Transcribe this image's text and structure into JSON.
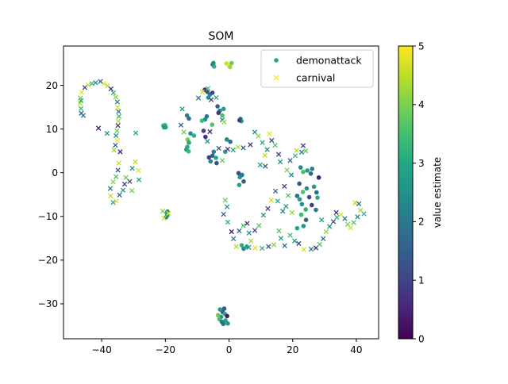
{
  "chart_data": {
    "type": "scatter",
    "title": "SOM",
    "xlabel": "",
    "ylabel": "",
    "xlim": [
      -52,
      47
    ],
    "ylim": [
      -38,
      29
    ],
    "xticks": [
      -40,
      -20,
      0,
      20,
      40
    ],
    "yticks": [
      -30,
      -20,
      -10,
      0,
      10,
      20
    ],
    "xtick_labels": [
      "−40",
      "−20",
      "0",
      "20",
      "40"
    ],
    "ytick_labels": [
      "−30",
      "−20",
      "−10",
      "0",
      "10",
      "20"
    ],
    "grid": false,
    "legend": {
      "placement": "top-right",
      "entries": [
        "demonattack",
        "carnival"
      ]
    },
    "colorbar": {
      "label": "value estimate",
      "range": [
        0,
        5
      ],
      "ticks": [
        0,
        1,
        2,
        3,
        4,
        5
      ],
      "tick_labels": [
        "0",
        "1",
        "2",
        "3",
        "4",
        "5"
      ],
      "colormap": "viridis"
    },
    "series": [
      {
        "name": "demonattack",
        "marker": "circle",
        "points": [
          [
            -5.1,
            24.8,
            1.2
          ],
          [
            -4.7,
            24.3,
            3.2
          ],
          [
            -4.9,
            25.1,
            2.5
          ],
          [
            -0.8,
            25.0,
            4.6
          ],
          [
            0.2,
            24.6,
            4.9
          ],
          [
            0.8,
            25.1,
            3.9
          ],
          [
            0.3,
            24.2,
            4.2
          ],
          [
            -7.6,
            19.0,
            0.6
          ],
          [
            -6.8,
            18.5,
            1.3
          ],
          [
            -6.0,
            17.9,
            2.1
          ],
          [
            -5.2,
            18.3,
            1.0
          ],
          [
            -6.5,
            17.2,
            2.6
          ],
          [
            -3.6,
            15.2,
            1.5
          ],
          [
            -2.9,
            14.2,
            2.4
          ],
          [
            -2.1,
            13.1,
            3.5
          ],
          [
            -3.3,
            13.7,
            0.8
          ],
          [
            -1.7,
            14.6,
            2.8
          ],
          [
            3.6,
            12.3,
            1.6
          ],
          [
            3.9,
            11.8,
            2.9
          ],
          [
            3.3,
            12.0,
            0.9
          ],
          [
            -20.6,
            10.8,
            3.1
          ],
          [
            -20.1,
            10.9,
            3.4
          ],
          [
            -19.9,
            10.4,
            3.0
          ],
          [
            -20.4,
            10.4,
            2.7
          ],
          [
            -7.5,
            12.2,
            2.5
          ],
          [
            -7.0,
            12.9,
            2.0
          ],
          [
            -13.2,
            13.1,
            2.2
          ],
          [
            -12.6,
            12.4,
            1.8
          ],
          [
            -8.5,
            11.9,
            3.4
          ],
          [
            -5.3,
            11.0,
            3.6
          ],
          [
            -11.0,
            8.5,
            3.2
          ],
          [
            -12.1,
            9.0,
            2.5
          ],
          [
            -13.0,
            7.6,
            3.9
          ],
          [
            -12.6,
            6.9,
            2.9
          ],
          [
            -13.4,
            5.3,
            2.7
          ],
          [
            -12.7,
            4.9,
            3.4
          ],
          [
            -13.1,
            5.9,
            3.1
          ],
          [
            -8.0,
            9.6,
            1.1
          ],
          [
            -7.4,
            8.2,
            0.7
          ],
          [
            -4.8,
            4.8,
            2.2
          ],
          [
            -5.2,
            3.9,
            1.6
          ],
          [
            -4.1,
            3.4,
            3.0
          ],
          [
            -5.8,
            2.6,
            2.5
          ],
          [
            -3.9,
            2.2,
            1.4
          ],
          [
            -6.3,
            3.5,
            0.9
          ],
          [
            -0.7,
            7.6,
            2.3
          ],
          [
            0.4,
            7.1,
            1.8
          ],
          [
            -1.2,
            4.8,
            3.0
          ],
          [
            3.0,
            -0.1,
            1.2
          ],
          [
            3.4,
            -1.0,
            2.6
          ],
          [
            4.1,
            -0.5,
            2.1
          ],
          [
            3.2,
            -2.8,
            2.9
          ],
          [
            4.6,
            -2.0,
            1.5
          ],
          [
            -19.6,
            -9.2,
            3.2
          ],
          [
            -19.4,
            -9.8,
            2.8
          ],
          [
            -19.8,
            -10.2,
            2.1
          ],
          [
            -19.3,
            -8.9,
            2.4
          ],
          [
            4.0,
            -16.6,
            3.2
          ],
          [
            4.6,
            -17.4,
            2.4
          ],
          [
            5.6,
            -16.9,
            2.9
          ],
          [
            22.5,
            1.2,
            2.3
          ],
          [
            23.3,
            0.2,
            3.5
          ],
          [
            24.6,
            0.5,
            2.8
          ],
          [
            25.7,
            -0.2,
            1.6
          ],
          [
            26.1,
            0.9,
            2.1
          ],
          [
            22.1,
            -2.5,
            1.4
          ],
          [
            23.2,
            -4.4,
            3.6
          ],
          [
            24.4,
            -3.6,
            2.4
          ],
          [
            22.2,
            -6.1,
            2.9
          ],
          [
            21.4,
            -5.3,
            1.9
          ],
          [
            25.2,
            -5.6,
            1.1
          ],
          [
            22.9,
            -7.2,
            2.5
          ],
          [
            24.1,
            -8.4,
            3.2
          ],
          [
            26.0,
            -7.4,
            0.9
          ],
          [
            27.3,
            -8.5,
            2.1
          ],
          [
            22.7,
            -9.6,
            3.4
          ],
          [
            24.2,
            -10.8,
            1.6
          ],
          [
            23.4,
            -12.2,
            2.6
          ],
          [
            21.4,
            -12.7,
            3.0
          ],
          [
            26.7,
            -3.2,
            2.8
          ],
          [
            27.5,
            -4.5,
            1.8
          ],
          [
            28.2,
            -1.1,
            0.5
          ],
          [
            27.8,
            -5.7,
            3.1
          ],
          [
            -2.0,
            -31.9,
            1.5
          ],
          [
            -1.3,
            -32.3,
            3.1
          ],
          [
            -2.5,
            -33.0,
            2.4
          ],
          [
            -3.0,
            -33.5,
            3.4
          ],
          [
            -2.3,
            -34.1,
            2.0
          ],
          [
            -1.1,
            -33.8,
            2.9
          ],
          [
            -0.6,
            -32.8,
            0.4
          ],
          [
            -0.4,
            -34.5,
            2.6
          ],
          [
            -3.4,
            -32.6,
            3.8
          ],
          [
            -1.8,
            -34.6,
            1.9
          ],
          [
            -2.8,
            -31.3,
            2.7
          ],
          [
            -1.5,
            -31.1,
            1.4
          ]
        ]
      },
      {
        "name": "carnival",
        "marker": "x",
        "points": [
          [
            -46.4,
            13.6,
            1.6
          ],
          [
            -46.5,
            14.7,
            3.4
          ],
          [
            -46.8,
            15.9,
            4.4
          ],
          [
            -46.7,
            17.1,
            4.0
          ],
          [
            -46.3,
            18.4,
            4.8
          ],
          [
            -45.3,
            19.5,
            1.2
          ],
          [
            -44.2,
            20.1,
            4.6
          ],
          [
            -43.1,
            20.4,
            3.3
          ],
          [
            -41.9,
            20.6,
            2.4
          ],
          [
            -40.4,
            20.9,
            1.4
          ],
          [
            -39.3,
            20.4,
            4.9
          ],
          [
            -38.2,
            19.9,
            4.4
          ],
          [
            -37.1,
            19.2,
            0.6
          ],
          [
            -36.3,
            18.3,
            3.2
          ],
          [
            -35.6,
            17.3,
            4.1
          ],
          [
            -35.1,
            16.2,
            2.1
          ],
          [
            -35.0,
            15.0,
            4.7
          ],
          [
            -34.7,
            14.0,
            1.9
          ],
          [
            -34.6,
            12.9,
            3.4
          ],
          [
            -34.8,
            11.8,
            4.4
          ],
          [
            -34.9,
            10.8,
            0.9
          ],
          [
            -35.2,
            9.6,
            3.9
          ],
          [
            -35.5,
            8.5,
            2.6
          ],
          [
            -35.1,
            7.4,
            4.9
          ],
          [
            -35.7,
            6.3,
            1.5
          ],
          [
            -36.1,
            5.2,
            4.2
          ],
          [
            -34.2,
            4.8,
            0.4
          ],
          [
            -41.0,
            10.2,
            0.3
          ],
          [
            -38.3,
            9.0,
            2.5
          ],
          [
            -29.3,
            9.1,
            3.0
          ],
          [
            -34.6,
            2.2,
            4.6
          ],
          [
            -34.9,
            0.6,
            1.5
          ],
          [
            -35.5,
            -0.9,
            3.6
          ],
          [
            -36.4,
            -2.1,
            4.1
          ],
          [
            -37.3,
            -3.6,
            2.0
          ],
          [
            -37.2,
            -5.3,
            4.5
          ],
          [
            -36.4,
            -6.8,
            3.1
          ],
          [
            -35.4,
            -6.5,
            4.8
          ],
          [
            -34.4,
            -5.1,
            1.8
          ],
          [
            -33.3,
            -4.0,
            2.6
          ],
          [
            -32.8,
            -2.6,
            0.9
          ],
          [
            -32.4,
            -1.1,
            3.8
          ],
          [
            -31.2,
            -2.0,
            1.2
          ],
          [
            -30.5,
            -4.1,
            4.0
          ],
          [
            -30.4,
            1.0,
            2.7
          ],
          [
            -29.4,
            2.5,
            4.5
          ],
          [
            -28.5,
            0.5,
            4.8
          ],
          [
            -28.3,
            -1.6,
            3.0
          ],
          [
            -20.4,
            -10.4,
            4.6
          ],
          [
            -20.8,
            -8.8,
            4.0
          ],
          [
            -19.0,
            -9.3,
            4.9
          ],
          [
            -14.7,
            14.6,
            2.9
          ],
          [
            -15.1,
            10.9,
            1.7
          ],
          [
            -14.2,
            9.3,
            3.8
          ],
          [
            -9.6,
            17.1,
            2.0
          ],
          [
            -8.4,
            18.5,
            4.6
          ],
          [
            -6.6,
            19.3,
            3.5
          ],
          [
            -5.6,
            16.7,
            0.8
          ],
          [
            -4.0,
            17.2,
            3.1
          ],
          [
            -2.1,
            12.1,
            1.8
          ],
          [
            -1.5,
            11.6,
            4.2
          ],
          [
            -6.0,
            9.4,
            0.5
          ],
          [
            -6.8,
            7.2,
            2.7
          ],
          [
            -3.2,
            5.6,
            1.2
          ],
          [
            -2.1,
            2.8,
            3.9
          ],
          [
            -0.4,
            5.4,
            0.6
          ],
          [
            1.3,
            5.2,
            2.9
          ],
          [
            2.8,
            5.9,
            4.4
          ],
          [
            4.5,
            5.7,
            1.6
          ],
          [
            6.7,
            6.4,
            0.7
          ],
          [
            8.1,
            9.3,
            2.3
          ],
          [
            9.2,
            8.4,
            4.1
          ],
          [
            10.5,
            6.9,
            3.1
          ],
          [
            12.0,
            5.3,
            2.0
          ],
          [
            12.7,
            8.9,
            4.8
          ],
          [
            13.4,
            7.4,
            1.1
          ],
          [
            14.5,
            6.3,
            3.6
          ],
          [
            15.6,
            4.2,
            0.9
          ],
          [
            16.1,
            2.5,
            2.5
          ],
          [
            11.3,
            4.0,
            4.5
          ],
          [
            9.8,
            1.8,
            2.9
          ],
          [
            11.4,
            1.5,
            1.4
          ],
          [
            -1.2,
            -6.3,
            3.9
          ],
          [
            -0.6,
            -7.8,
            2.7
          ],
          [
            -1.7,
            -9.5,
            1.5
          ],
          [
            -0.4,
            -11.3,
            3.2
          ],
          [
            0.8,
            -13.5,
            0.4
          ],
          [
            1.4,
            -15.1,
            2.0
          ],
          [
            2.3,
            -16.9,
            4.4
          ],
          [
            3.2,
            -13.3,
            1.6
          ],
          [
            4.5,
            -12.1,
            3.5
          ],
          [
            5.7,
            -11.6,
            0.6
          ],
          [
            6.3,
            -13.8,
            2.5
          ],
          [
            6.9,
            -15.6,
            4.3
          ],
          [
            8.1,
            -13.2,
            1.2
          ],
          [
            9.4,
            -12.1,
            3.7
          ],
          [
            10.8,
            -9.7,
            2.4
          ],
          [
            12.2,
            -8.2,
            0.9
          ],
          [
            13.3,
            -6.3,
            4.6
          ],
          [
            14.6,
            -4.2,
            1.7
          ],
          [
            15.3,
            -6.5,
            3.0
          ],
          [
            16.9,
            -8.8,
            2.2
          ],
          [
            15.7,
            -13.3,
            3.7
          ],
          [
            16.3,
            -15.0,
            2.9
          ],
          [
            17.5,
            -16.7,
            1.9
          ],
          [
            14.1,
            -16.5,
            4.1
          ],
          [
            12.4,
            -16.9,
            1.3
          ],
          [
            10.4,
            -17.3,
            3.3
          ],
          [
            8.2,
            -17.2,
            4.8
          ],
          [
            6.2,
            -17.1,
            2.4
          ],
          [
            19.2,
            -14.3,
            3.4
          ],
          [
            20.6,
            -15.6,
            2.7
          ],
          [
            21.9,
            -16.2,
            1.0
          ],
          [
            23.5,
            -17.6,
            4.7
          ],
          [
            25.8,
            -17.5,
            2.1
          ],
          [
            27.3,
            -17.2,
            0.8
          ],
          [
            28.5,
            -16.4,
            3.6
          ],
          [
            29.6,
            -15.1,
            1.7
          ],
          [
            30.5,
            -13.5,
            4.2
          ],
          [
            31.6,
            -12.3,
            2.5
          ],
          [
            32.8,
            -11.2,
            1.0
          ],
          [
            33.9,
            -10.2,
            3.1
          ],
          [
            35.2,
            -9.6,
            4.8
          ],
          [
            36.4,
            -10.5,
            2.1
          ],
          [
            37.3,
            -11.8,
            4.0
          ],
          [
            38.2,
            -12.6,
            4.7
          ],
          [
            39.2,
            -11.4,
            3.6
          ],
          [
            40.4,
            -10.1,
            2.2
          ],
          [
            41.3,
            -8.6,
            4.3
          ],
          [
            42.4,
            -9.4,
            3.2
          ],
          [
            40.8,
            -7.1,
            1.8
          ],
          [
            39.6,
            -6.9,
            4.5
          ],
          [
            33.7,
            -9.1,
            0.6
          ],
          [
            29.1,
            -10.8,
            2.9
          ],
          [
            19.6,
            -0.5,
            2.4
          ],
          [
            18.2,
            0.6,
            4.0
          ],
          [
            19.2,
            2.8,
            1.5
          ],
          [
            20.8,
            3.9,
            3.3
          ],
          [
            21.2,
            5.1,
            4.4
          ],
          [
            22.8,
            4.7,
            2.2
          ],
          [
            23.3,
            6.2,
            0.9
          ],
          [
            24.1,
            5.0,
            3.8
          ],
          [
            17.4,
            -3.1,
            1.1
          ],
          [
            18.6,
            -5.2,
            3.6
          ],
          [
            17.9,
            -7.7,
            2.6
          ],
          [
            19.8,
            -9.1,
            4.2
          ],
          [
            -46.5,
            16.5,
            3.0
          ],
          [
            -45.8,
            13.1,
            2.1
          ]
        ]
      }
    ]
  }
}
